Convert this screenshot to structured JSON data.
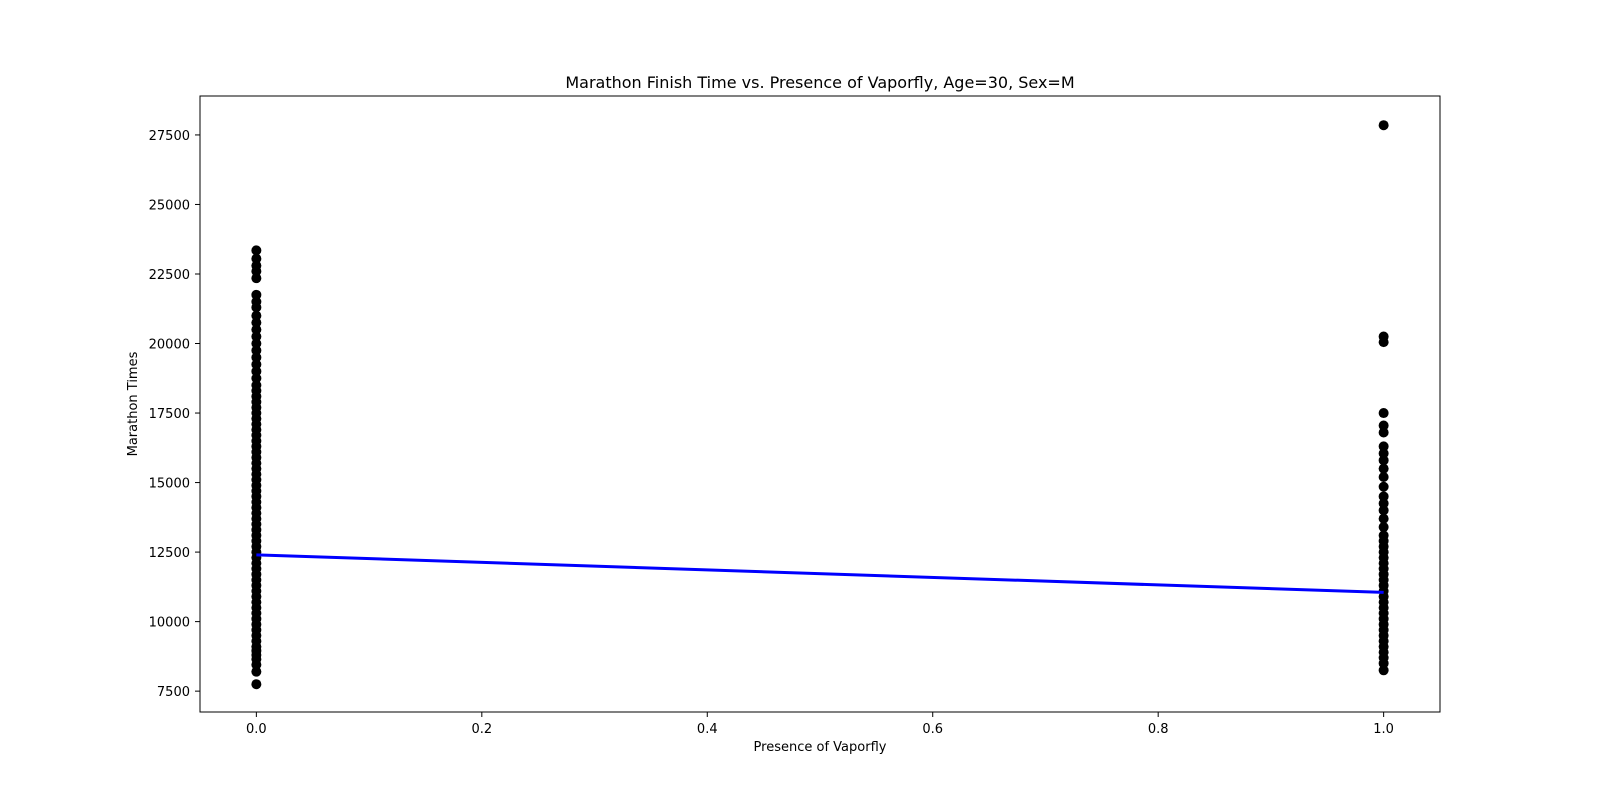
{
  "chart_data": {
    "type": "scatter",
    "title": "Marathon Finish Time vs. Presence of Vaporfly, Age=30, Sex=M",
    "xlabel": "Presence of Vaporfly",
    "ylabel": "Marathon Times",
    "xlim": [
      -0.05,
      1.05
    ],
    "ylim": [
      6750,
      28900
    ],
    "x_ticks": [
      0.0,
      0.2,
      0.4,
      0.6,
      0.8,
      1.0
    ],
    "x_tick_labels": [
      "0.0",
      "0.2",
      "0.4",
      "0.6",
      "0.8",
      "1.0"
    ],
    "y_ticks": [
      7500,
      10000,
      12500,
      15000,
      17500,
      20000,
      22500,
      25000,
      27500
    ],
    "y_tick_labels": [
      "7500",
      "10000",
      "12500",
      "15000",
      "17500",
      "20000",
      "22500",
      "25000",
      "27500"
    ],
    "grid": false,
    "legend": "none",
    "series": [
      {
        "kind": "scatter",
        "color": "#000000",
        "points": [
          [
            0,
            7750
          ],
          [
            0,
            8200
          ],
          [
            0,
            8450
          ],
          [
            0,
            8650
          ],
          [
            0,
            8800
          ],
          [
            0,
            8950
          ],
          [
            0,
            9100
          ],
          [
            0,
            9300
          ],
          [
            0,
            9500
          ],
          [
            0,
            9700
          ],
          [
            0,
            9900
          ],
          [
            0,
            10100
          ],
          [
            0,
            10300
          ],
          [
            0,
            10500
          ],
          [
            0,
            10700
          ],
          [
            0,
            10900
          ],
          [
            0,
            11100
          ],
          [
            0,
            11300
          ],
          [
            0,
            11500
          ],
          [
            0,
            11700
          ],
          [
            0,
            11900
          ],
          [
            0,
            12100
          ],
          [
            0,
            12300
          ],
          [
            0,
            12500
          ],
          [
            0,
            12700
          ],
          [
            0,
            12900
          ],
          [
            0,
            13100
          ],
          [
            0,
            13300
          ],
          [
            0,
            13500
          ],
          [
            0,
            13700
          ],
          [
            0,
            13900
          ],
          [
            0,
            14100
          ],
          [
            0,
            14300
          ],
          [
            0,
            14500
          ],
          [
            0,
            14700
          ],
          [
            0,
            14900
          ],
          [
            0,
            15100
          ],
          [
            0,
            15300
          ],
          [
            0,
            15500
          ],
          [
            0,
            15700
          ],
          [
            0,
            15900
          ],
          [
            0,
            16100
          ],
          [
            0,
            16300
          ],
          [
            0,
            16500
          ],
          [
            0,
            16700
          ],
          [
            0,
            16900
          ],
          [
            0,
            17100
          ],
          [
            0,
            17300
          ],
          [
            0,
            17500
          ],
          [
            0,
            17700
          ],
          [
            0,
            17900
          ],
          [
            0,
            18100
          ],
          [
            0,
            18300
          ],
          [
            0,
            18500
          ],
          [
            0,
            18750
          ],
          [
            0,
            19000
          ],
          [
            0,
            19250
          ],
          [
            0,
            19500
          ],
          [
            0,
            19750
          ],
          [
            0,
            20000
          ],
          [
            0,
            20250
          ],
          [
            0,
            20500
          ],
          [
            0,
            20750
          ],
          [
            0,
            21000
          ],
          [
            0,
            21300
          ],
          [
            0,
            21500
          ],
          [
            0,
            21750
          ],
          [
            0,
            22350
          ],
          [
            0,
            22600
          ],
          [
            0,
            22800
          ],
          [
            0,
            23050
          ],
          [
            0,
            23350
          ],
          [
            1,
            8250
          ],
          [
            1,
            8500
          ],
          [
            1,
            8700
          ],
          [
            1,
            8900
          ],
          [
            1,
            9100
          ],
          [
            1,
            9300
          ],
          [
            1,
            9500
          ],
          [
            1,
            9700
          ],
          [
            1,
            9900
          ],
          [
            1,
            10100
          ],
          [
            1,
            10300
          ],
          [
            1,
            10500
          ],
          [
            1,
            10700
          ],
          [
            1,
            10900
          ],
          [
            1,
            11100
          ],
          [
            1,
            11300
          ],
          [
            1,
            11500
          ],
          [
            1,
            11700
          ],
          [
            1,
            11900
          ],
          [
            1,
            12100
          ],
          [
            1,
            12300
          ],
          [
            1,
            12500
          ],
          [
            1,
            12700
          ],
          [
            1,
            12900
          ],
          [
            1,
            13100
          ],
          [
            1,
            13400
          ],
          [
            1,
            13700
          ],
          [
            1,
            14000
          ],
          [
            1,
            14250
          ],
          [
            1,
            14500
          ],
          [
            1,
            14850
          ],
          [
            1,
            15200
          ],
          [
            1,
            15500
          ],
          [
            1,
            15800
          ],
          [
            1,
            16050
          ],
          [
            1,
            16300
          ],
          [
            1,
            16800
          ],
          [
            1,
            17050
          ],
          [
            1,
            17500
          ],
          [
            1,
            20050
          ],
          [
            1,
            20250
          ],
          [
            1,
            27850
          ]
        ]
      },
      {
        "kind": "line",
        "color": "#0000ff",
        "points": [
          [
            0,
            12400
          ],
          [
            1,
            11050
          ]
        ]
      }
    ]
  }
}
